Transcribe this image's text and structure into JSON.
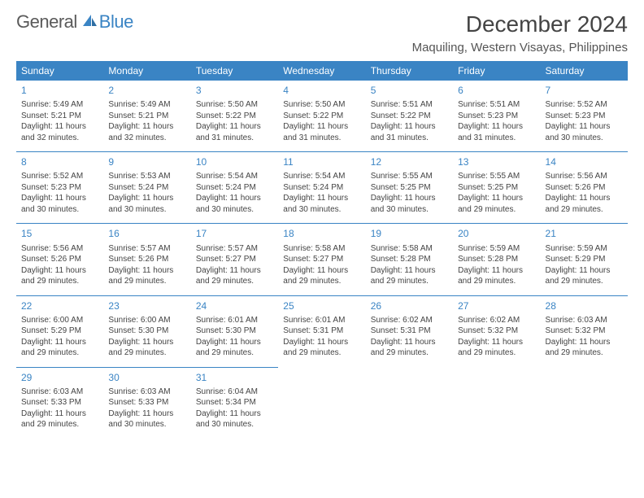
{
  "logo": {
    "word1": "General",
    "word2": "Blue"
  },
  "title": "December 2024",
  "subtitle": "Maquiling, Western Visayas, Philippines",
  "colors": {
    "brand": "#3a84c4",
    "header_bg": "#3a84c4",
    "header_text": "#ffffff",
    "body_text": "#444444",
    "background": "#ffffff",
    "row_border": "#3a84c4"
  },
  "days_of_week": [
    "Sunday",
    "Monday",
    "Tuesday",
    "Wednesday",
    "Thursday",
    "Friday",
    "Saturday"
  ],
  "weeks": [
    [
      {
        "n": "1",
        "sr": "Sunrise: 5:49 AM",
        "ss": "Sunset: 5:21 PM",
        "d1": "Daylight: 11 hours",
        "d2": "and 32 minutes."
      },
      {
        "n": "2",
        "sr": "Sunrise: 5:49 AM",
        "ss": "Sunset: 5:21 PM",
        "d1": "Daylight: 11 hours",
        "d2": "and 32 minutes."
      },
      {
        "n": "3",
        "sr": "Sunrise: 5:50 AM",
        "ss": "Sunset: 5:22 PM",
        "d1": "Daylight: 11 hours",
        "d2": "and 31 minutes."
      },
      {
        "n": "4",
        "sr": "Sunrise: 5:50 AM",
        "ss": "Sunset: 5:22 PM",
        "d1": "Daylight: 11 hours",
        "d2": "and 31 minutes."
      },
      {
        "n": "5",
        "sr": "Sunrise: 5:51 AM",
        "ss": "Sunset: 5:22 PM",
        "d1": "Daylight: 11 hours",
        "d2": "and 31 minutes."
      },
      {
        "n": "6",
        "sr": "Sunrise: 5:51 AM",
        "ss": "Sunset: 5:23 PM",
        "d1": "Daylight: 11 hours",
        "d2": "and 31 minutes."
      },
      {
        "n": "7",
        "sr": "Sunrise: 5:52 AM",
        "ss": "Sunset: 5:23 PM",
        "d1": "Daylight: 11 hours",
        "d2": "and 30 minutes."
      }
    ],
    [
      {
        "n": "8",
        "sr": "Sunrise: 5:52 AM",
        "ss": "Sunset: 5:23 PM",
        "d1": "Daylight: 11 hours",
        "d2": "and 30 minutes."
      },
      {
        "n": "9",
        "sr": "Sunrise: 5:53 AM",
        "ss": "Sunset: 5:24 PM",
        "d1": "Daylight: 11 hours",
        "d2": "and 30 minutes."
      },
      {
        "n": "10",
        "sr": "Sunrise: 5:54 AM",
        "ss": "Sunset: 5:24 PM",
        "d1": "Daylight: 11 hours",
        "d2": "and 30 minutes."
      },
      {
        "n": "11",
        "sr": "Sunrise: 5:54 AM",
        "ss": "Sunset: 5:24 PM",
        "d1": "Daylight: 11 hours",
        "d2": "and 30 minutes."
      },
      {
        "n": "12",
        "sr": "Sunrise: 5:55 AM",
        "ss": "Sunset: 5:25 PM",
        "d1": "Daylight: 11 hours",
        "d2": "and 30 minutes."
      },
      {
        "n": "13",
        "sr": "Sunrise: 5:55 AM",
        "ss": "Sunset: 5:25 PM",
        "d1": "Daylight: 11 hours",
        "d2": "and 29 minutes."
      },
      {
        "n": "14",
        "sr": "Sunrise: 5:56 AM",
        "ss": "Sunset: 5:26 PM",
        "d1": "Daylight: 11 hours",
        "d2": "and 29 minutes."
      }
    ],
    [
      {
        "n": "15",
        "sr": "Sunrise: 5:56 AM",
        "ss": "Sunset: 5:26 PM",
        "d1": "Daylight: 11 hours",
        "d2": "and 29 minutes."
      },
      {
        "n": "16",
        "sr": "Sunrise: 5:57 AM",
        "ss": "Sunset: 5:26 PM",
        "d1": "Daylight: 11 hours",
        "d2": "and 29 minutes."
      },
      {
        "n": "17",
        "sr": "Sunrise: 5:57 AM",
        "ss": "Sunset: 5:27 PM",
        "d1": "Daylight: 11 hours",
        "d2": "and 29 minutes."
      },
      {
        "n": "18",
        "sr": "Sunrise: 5:58 AM",
        "ss": "Sunset: 5:27 PM",
        "d1": "Daylight: 11 hours",
        "d2": "and 29 minutes."
      },
      {
        "n": "19",
        "sr": "Sunrise: 5:58 AM",
        "ss": "Sunset: 5:28 PM",
        "d1": "Daylight: 11 hours",
        "d2": "and 29 minutes."
      },
      {
        "n": "20",
        "sr": "Sunrise: 5:59 AM",
        "ss": "Sunset: 5:28 PM",
        "d1": "Daylight: 11 hours",
        "d2": "and 29 minutes."
      },
      {
        "n": "21",
        "sr": "Sunrise: 5:59 AM",
        "ss": "Sunset: 5:29 PM",
        "d1": "Daylight: 11 hours",
        "d2": "and 29 minutes."
      }
    ],
    [
      {
        "n": "22",
        "sr": "Sunrise: 6:00 AM",
        "ss": "Sunset: 5:29 PM",
        "d1": "Daylight: 11 hours",
        "d2": "and 29 minutes."
      },
      {
        "n": "23",
        "sr": "Sunrise: 6:00 AM",
        "ss": "Sunset: 5:30 PM",
        "d1": "Daylight: 11 hours",
        "d2": "and 29 minutes."
      },
      {
        "n": "24",
        "sr": "Sunrise: 6:01 AM",
        "ss": "Sunset: 5:30 PM",
        "d1": "Daylight: 11 hours",
        "d2": "and 29 minutes."
      },
      {
        "n": "25",
        "sr": "Sunrise: 6:01 AM",
        "ss": "Sunset: 5:31 PM",
        "d1": "Daylight: 11 hours",
        "d2": "and 29 minutes."
      },
      {
        "n": "26",
        "sr": "Sunrise: 6:02 AM",
        "ss": "Sunset: 5:31 PM",
        "d1": "Daylight: 11 hours",
        "d2": "and 29 minutes."
      },
      {
        "n": "27",
        "sr": "Sunrise: 6:02 AM",
        "ss": "Sunset: 5:32 PM",
        "d1": "Daylight: 11 hours",
        "d2": "and 29 minutes."
      },
      {
        "n": "28",
        "sr": "Sunrise: 6:03 AM",
        "ss": "Sunset: 5:32 PM",
        "d1": "Daylight: 11 hours",
        "d2": "and 29 minutes."
      }
    ],
    [
      {
        "n": "29",
        "sr": "Sunrise: 6:03 AM",
        "ss": "Sunset: 5:33 PM",
        "d1": "Daylight: 11 hours",
        "d2": "and 29 minutes."
      },
      {
        "n": "30",
        "sr": "Sunrise: 6:03 AM",
        "ss": "Sunset: 5:33 PM",
        "d1": "Daylight: 11 hours",
        "d2": "and 30 minutes."
      },
      {
        "n": "31",
        "sr": "Sunrise: 6:04 AM",
        "ss": "Sunset: 5:34 PM",
        "d1": "Daylight: 11 hours",
        "d2": "and 30 minutes."
      },
      null,
      null,
      null,
      null
    ]
  ]
}
